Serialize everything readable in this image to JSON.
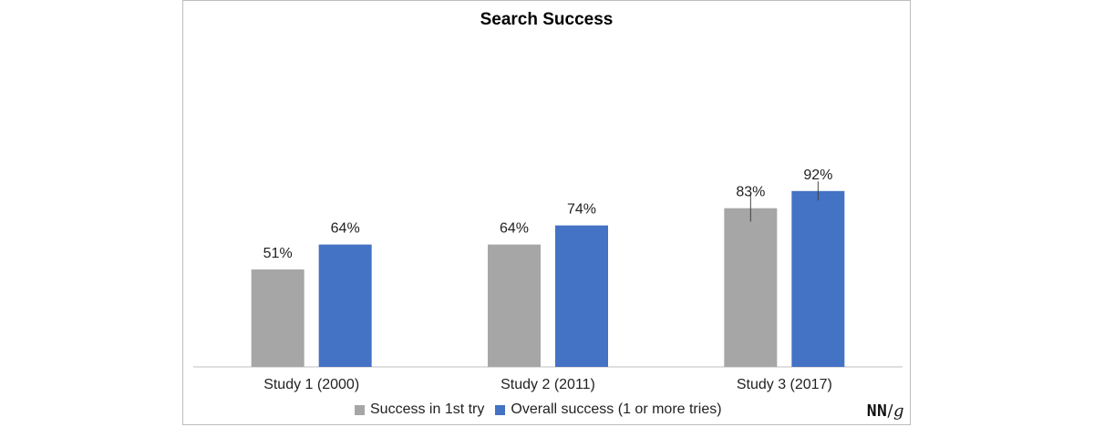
{
  "chart_data": {
    "type": "bar",
    "title": "Search Success",
    "categories": [
      "Study 1 (2000)",
      "Study 2 (2011)",
      "Study 3 (2017)"
    ],
    "series": [
      {
        "name": "Success in 1st try",
        "values": [
          51,
          64,
          83
        ],
        "labels": [
          "51%",
          "64%",
          "83%"
        ],
        "color": "#a6a6a6"
      },
      {
        "name": "Overall success (1 or more tries)",
        "values": [
          64,
          74,
          92
        ],
        "labels": [
          "64%",
          "74%",
          "92%"
        ],
        "color": "#4472c4"
      }
    ],
    "error_bars": {
      "series_0": [
        null,
        null,
        7
      ],
      "series_1": [
        null,
        null,
        5
      ]
    },
    "ylim": [
      0,
      100
    ],
    "legend": "bottom",
    "grid": false
  },
  "logo": {
    "nn": "NN",
    "slash": "/",
    "g": "g"
  }
}
